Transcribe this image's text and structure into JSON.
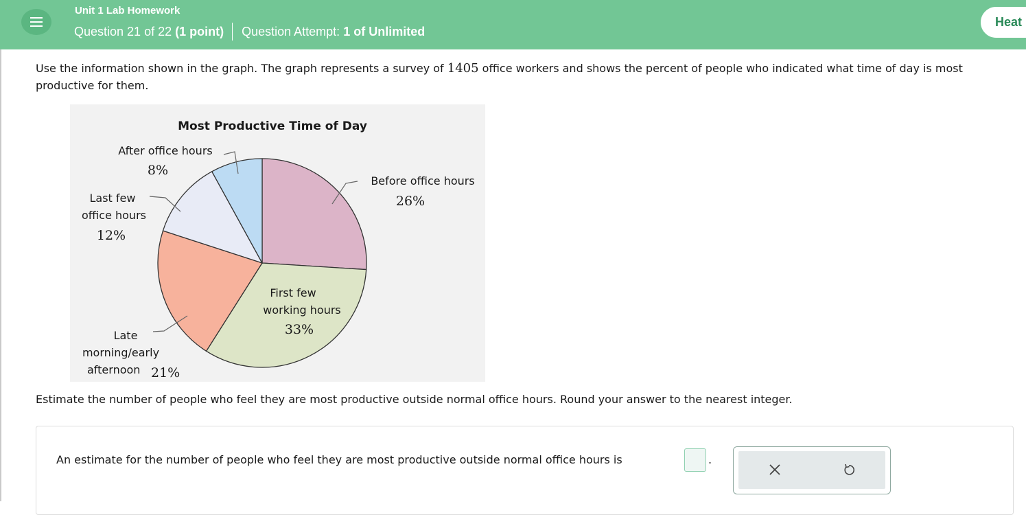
{
  "header": {
    "course_title": "Unit 1 Lab Homework",
    "question_label": "Question 21 of 22",
    "points_label": "(1 point)",
    "attempt_label": "Question Attempt:",
    "attempt_value": "1 of Unlimited",
    "help_button_label": "Heat",
    "menu_icon": "hamburger-menu-icon"
  },
  "prompt": {
    "text_before": "Use the information shown in the graph. The graph represents a survey of ",
    "survey_count": "1405",
    "text_after": " office workers and shows the percent of people who indicated what time of day is most productive for them."
  },
  "chart_data": {
    "type": "pie",
    "title": "Most Productive Time of Day",
    "slices": [
      {
        "label": "Before office hours",
        "value": 26,
        "display": "26%",
        "color": "#dcb4c8"
      },
      {
        "label": "First few working hours",
        "value": 33,
        "display": "33%",
        "color": "#dde5c7"
      },
      {
        "label": "Late morning/early afternoon",
        "value": 21,
        "display": "21%",
        "color": "#f7b29c"
      },
      {
        "label": "Last few office hours",
        "value": 12,
        "display": "12%",
        "color": "#e8ebf6"
      },
      {
        "label": "After office hours",
        "value": 8,
        "display": "8%",
        "color": "#bcdbf3"
      }
    ]
  },
  "chart_labels": {
    "after_office_hours": "After office hours",
    "after_office_pct": "8%",
    "before_office_hours": "Before office hours",
    "before_office_pct": "26%",
    "last_few_line1": "Last few",
    "last_few_line2": "office hours",
    "last_few_pct": "12%",
    "first_few_line1": "First few",
    "first_few_line2": "working hours",
    "first_few_pct": "33%",
    "late_line1": "Late",
    "late_line2": "morning/early",
    "late_line3": "afternoon",
    "late_pct": "21%"
  },
  "question": {
    "text": "Estimate the number of people who feel they are most productive outside normal office hours. Round your answer to the nearest integer."
  },
  "answer": {
    "text": "An estimate for the number of people who feel they are most productive outside normal office hours is",
    "input_value": "",
    "period": "."
  },
  "tools": {
    "clear_icon": "close-icon",
    "undo_icon": "undo-icon"
  },
  "colors": {
    "header_bg": "#72c695",
    "accent": "#2a8a58",
    "input_border": "#8fd0b0"
  }
}
